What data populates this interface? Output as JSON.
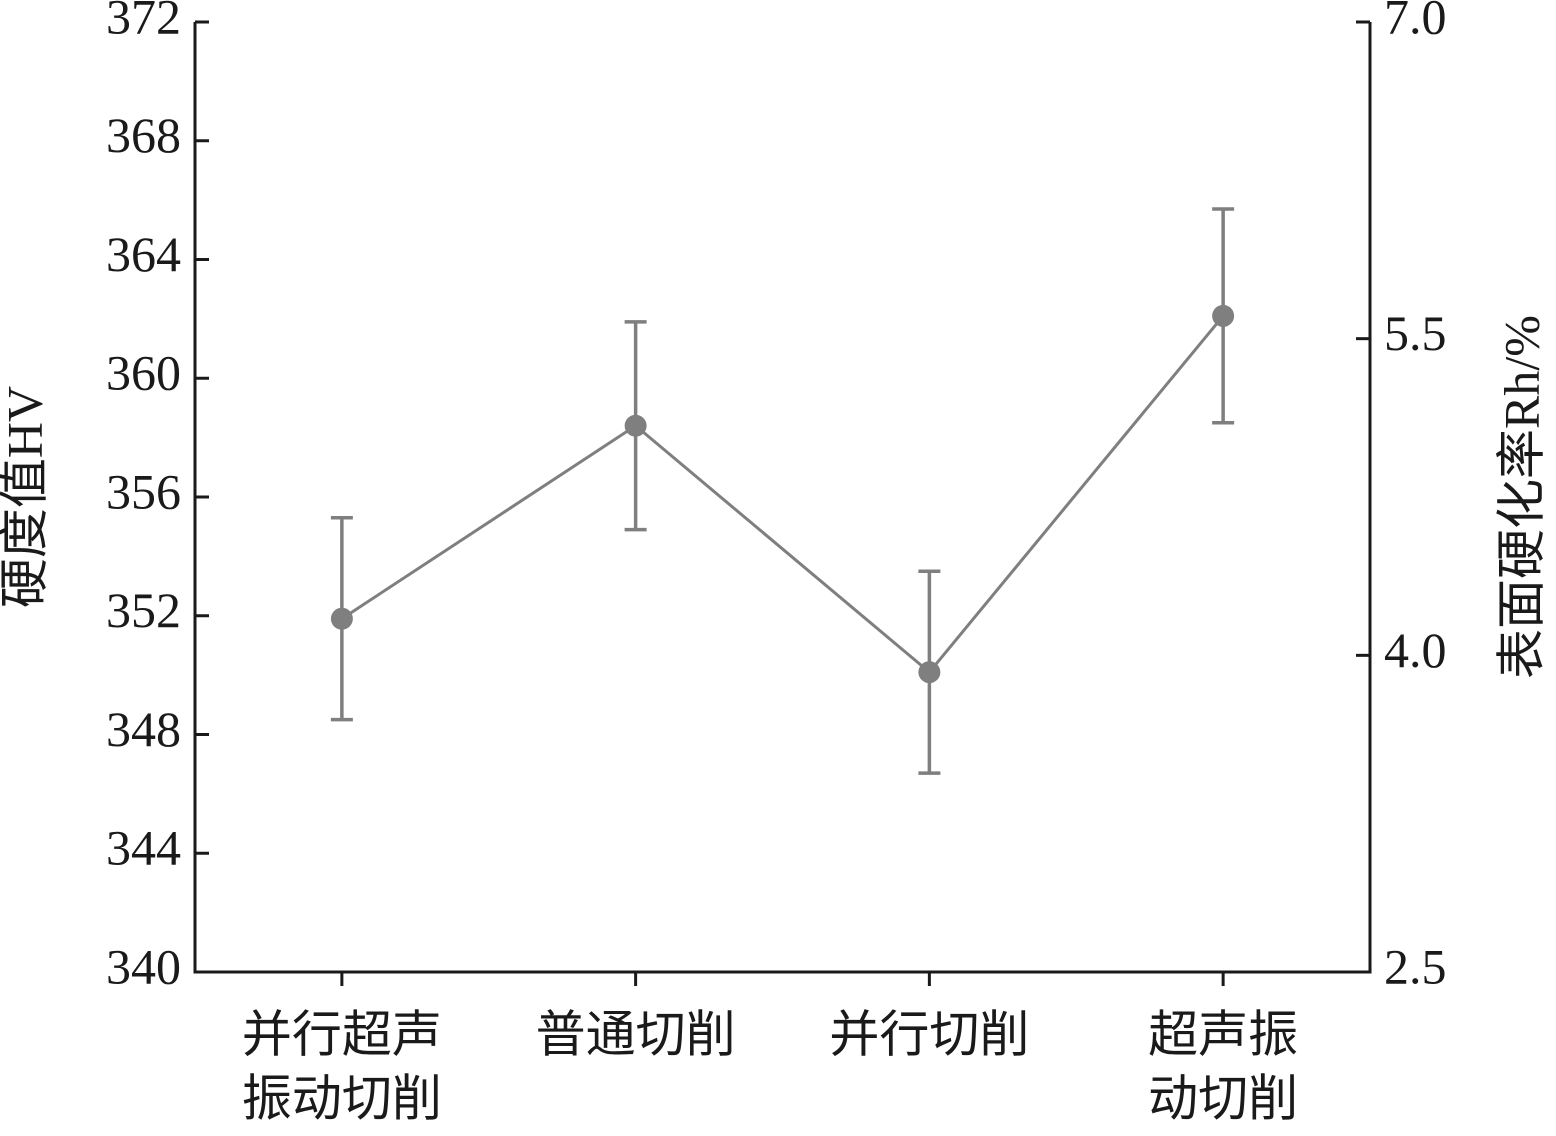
{
  "chart_data": {
    "type": "line",
    "categories": [
      [
        "并行超声",
        "振动切削"
      ],
      [
        "普通切削"
      ],
      [
        "并行切削"
      ],
      [
        "超声振",
        "动切削"
      ]
    ],
    "series": [
      {
        "color": "#7f7f7f",
        "values": [
          351.9,
          358.4,
          350.1,
          362.1
        ],
        "errors": [
          3.4,
          3.5,
          3.4,
          3.6
        ]
      }
    ],
    "y_label": "硬度值HV",
    "y2_label": "表面硬化率Rh/%",
    "ylim": [
      340,
      372
    ],
    "yticks": [
      340,
      344,
      348,
      352,
      356,
      360,
      364,
      368,
      372
    ],
    "y2lim": [
      2.5,
      7.0
    ],
    "y2ticks": [
      2.5,
      {
        "value": 4,
        "label": "4.0"
      },
      5.5,
      {
        "value": 7,
        "label": "7.0"
      }
    ],
    "grid": false
  }
}
